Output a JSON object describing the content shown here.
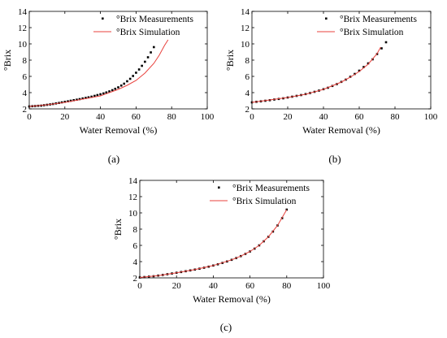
{
  "chart_data": [
    {
      "type": "scatter",
      "panel_label": "(a)",
      "xlabel": "Water Removal (%)",
      "ylabel": "°Brix",
      "xlim": [
        0,
        100
      ],
      "ylim": [
        2,
        14
      ],
      "xticks": [
        0,
        20,
        40,
        60,
        80,
        100
      ],
      "yticks": [
        2,
        4,
        6,
        8,
        10,
        12,
        14
      ],
      "grid": false,
      "legend_position": "top-right",
      "series": [
        {
          "name": "°Brix Measurements",
          "kind": "points",
          "color": "#000000",
          "x": [
            0,
            1.7,
            3.3,
            5,
            6.7,
            8.3,
            10,
            11.7,
            13.3,
            15,
            16.7,
            18.3,
            20,
            21.7,
            23.3,
            25,
            26.7,
            28.3,
            30,
            31.7,
            33.3,
            35,
            36.7,
            38.3,
            40,
            41.7,
            43.3,
            45,
            46.7,
            48.3,
            50,
            51.7,
            53.3,
            55,
            56.7,
            58.3,
            60,
            61.7,
            63.3,
            65,
            66.7,
            68.3,
            70
          ],
          "y": [
            2.3,
            2.33,
            2.35,
            2.38,
            2.4,
            2.45,
            2.5,
            2.55,
            2.6,
            2.67,
            2.73,
            2.8,
            2.87,
            2.93,
            3.0,
            3.07,
            3.13,
            3.2,
            3.28,
            3.35,
            3.42,
            3.5,
            3.6,
            3.7,
            3.8,
            3.9,
            4.02,
            4.15,
            4.3,
            4.47,
            4.65,
            4.87,
            5.1,
            5.4,
            5.7,
            6.05,
            6.45,
            6.85,
            7.3,
            7.8,
            8.35,
            8.95,
            9.6
          ]
        },
        {
          "name": "°Brix Simulation",
          "kind": "line",
          "color": "#e8413c",
          "x": [
            0,
            10,
            20,
            30,
            40,
            50,
            55,
            60,
            65,
            70,
            73,
            76,
            78
          ],
          "y": [
            2.3,
            2.5,
            2.8,
            3.2,
            3.6,
            4.4,
            4.9,
            5.5,
            6.4,
            7.6,
            8.6,
            9.8,
            10.5
          ]
        }
      ]
    },
    {
      "type": "scatter",
      "panel_label": "(b)",
      "xlabel": "Water Removal (%)",
      "ylabel": "°Brix",
      "xlim": [
        0,
        100
      ],
      "ylim": [
        2,
        14
      ],
      "xticks": [
        0,
        20,
        40,
        60,
        80,
        100
      ],
      "yticks": [
        2,
        4,
        6,
        8,
        10,
        12,
        14
      ],
      "grid": false,
      "legend_position": "top-right",
      "series": [
        {
          "name": "°Brix Measurements",
          "kind": "points",
          "color": "#000000",
          "x": [
            0,
            2.5,
            5,
            7.5,
            10,
            12.5,
            15,
            17.5,
            20,
            22.5,
            25,
            27.5,
            30,
            32.5,
            35,
            37.5,
            40,
            42.5,
            45,
            47.5,
            50,
            52.5,
            55,
            57.5,
            60,
            62.5,
            65,
            67.5,
            70,
            72.5,
            75
          ],
          "y": [
            2.8,
            2.87,
            2.93,
            3.0,
            3.07,
            3.15,
            3.22,
            3.3,
            3.4,
            3.5,
            3.6,
            3.7,
            3.82,
            3.95,
            4.1,
            4.25,
            4.42,
            4.6,
            4.82,
            5.05,
            5.32,
            5.6,
            5.95,
            6.3,
            6.7,
            7.15,
            7.6,
            8.1,
            8.75,
            9.45,
            10.2
          ]
        },
        {
          "name": "°Brix Simulation",
          "kind": "line",
          "color": "#e8413c",
          "x": [
            0,
            10,
            20,
            30,
            40,
            50,
            55,
            60,
            65,
            70,
            72
          ],
          "y": [
            2.8,
            3.1,
            3.4,
            3.8,
            4.4,
            5.3,
            5.9,
            6.6,
            7.5,
            8.8,
            9.6
          ]
        }
      ]
    },
    {
      "type": "scatter",
      "panel_label": "(c)",
      "xlabel": "Water Removal (%)",
      "ylabel": "°Brix",
      "xlim": [
        0,
        100
      ],
      "ylim": [
        2,
        14
      ],
      "xticks": [
        0,
        20,
        40,
        60,
        80,
        100
      ],
      "yticks": [
        2,
        4,
        6,
        8,
        10,
        12,
        14
      ],
      "grid": false,
      "legend_position": "top-right",
      "series": [
        {
          "name": "°Brix Measurements",
          "kind": "points",
          "color": "#000000",
          "x": [
            0,
            2.5,
            5,
            7.5,
            10,
            12.5,
            15,
            17.5,
            20,
            22.5,
            25,
            27.5,
            30,
            32.5,
            35,
            37.5,
            40,
            42.5,
            45,
            47.5,
            50,
            52.5,
            55,
            57.5,
            60,
            62.5,
            65,
            67.5,
            70,
            72.5,
            75,
            77.5,
            80
          ],
          "y": [
            2.05,
            2.1,
            2.15,
            2.2,
            2.28,
            2.36,
            2.45,
            2.54,
            2.63,
            2.72,
            2.82,
            2.92,
            3.02,
            3.13,
            3.25,
            3.38,
            3.52,
            3.67,
            3.84,
            4.02,
            4.22,
            4.44,
            4.68,
            4.95,
            5.25,
            5.6,
            6.0,
            6.5,
            7.05,
            7.7,
            8.45,
            9.35,
            10.4
          ]
        },
        {
          "name": "°Brix Simulation",
          "kind": "line",
          "color": "#e8413c",
          "x": [
            0,
            10,
            20,
            30,
            40,
            50,
            55,
            60,
            65,
            70,
            75,
            80
          ],
          "y": [
            2.05,
            2.28,
            2.63,
            3.02,
            3.52,
            4.22,
            4.68,
            5.25,
            6.0,
            7.05,
            8.45,
            10.4
          ]
        }
      ]
    }
  ]
}
